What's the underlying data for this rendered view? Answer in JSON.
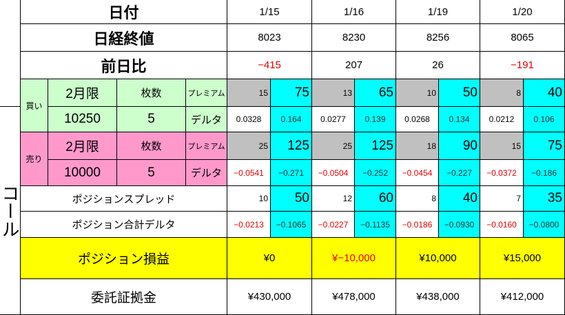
{
  "side_label": "コール",
  "headers": {
    "date": "日付",
    "close": "日経終値",
    "change": "前日比",
    "spread": "ポジションスプレッド",
    "total_delta": "ポジション合計デルタ",
    "pnl": "ポジション損益",
    "margin": "委託証拠金"
  },
  "buy": {
    "label": "買い",
    "month": "2月限",
    "qty_label": "枚数",
    "premium_label": "プレミアム",
    "strike": "10250",
    "qty": "5",
    "delta_label": "デルタ"
  },
  "sell": {
    "label": "売り",
    "month": "2月限",
    "qty_label": "枚数",
    "premium_label": "プレミアム",
    "strike": "10000",
    "qty": "5",
    "delta_label": "デルタ"
  },
  "columns": [
    {
      "date": "1/15",
      "close": "8023",
      "change": "−415",
      "buy_prem": "15",
      "buy_prem_total": "75",
      "buy_delta": "0.0328",
      "buy_delta_total": "0.164",
      "sell_prem": "25",
      "sell_prem_total": "125",
      "sell_delta": "−0.0541",
      "sell_delta_total": "−0.271",
      "spread": "10",
      "spread_total": "50",
      "tdelta": "−0.0213",
      "tdelta_total": "−0.1065",
      "pnl": "¥0",
      "margin": "¥430,000"
    },
    {
      "date": "1/16",
      "close": "8230",
      "change": "207",
      "buy_prem": "13",
      "buy_prem_total": "65",
      "buy_delta": "0.0277",
      "buy_delta_total": "0.139",
      "sell_prem": "25",
      "sell_prem_total": "125",
      "sell_delta": "−0.0504",
      "sell_delta_total": "−0.252",
      "spread": "12",
      "spread_total": "60",
      "tdelta": "−0.0227",
      "tdelta_total": "−0.1135",
      "pnl": "¥−10,000",
      "margin": "¥478,000"
    },
    {
      "date": "1/19",
      "close": "8256",
      "change": "26",
      "buy_prem": "10",
      "buy_prem_total": "50",
      "buy_delta": "0.0268",
      "buy_delta_total": "0.134",
      "sell_prem": "18",
      "sell_prem_total": "90",
      "sell_delta": "−0.0454",
      "sell_delta_total": "−0.227",
      "spread": "8",
      "spread_total": "40",
      "tdelta": "−0.0186",
      "tdelta_total": "−0.0930",
      "pnl": "¥10,000",
      "margin": "¥438,000"
    },
    {
      "date": "1/20",
      "close": "8065",
      "change": "−191",
      "buy_prem": "8",
      "buy_prem_total": "40",
      "buy_delta": "0.0212",
      "buy_delta_total": "0.106",
      "sell_prem": "15",
      "sell_prem_total": "75",
      "sell_delta": "−0.0372",
      "sell_delta_total": "−0.186",
      "spread": "7",
      "spread_total": "35",
      "tdelta": "−0.0160",
      "tdelta_total": "−0.0800",
      "pnl": "¥15,000",
      "margin": "¥412,000"
    }
  ],
  "negative_change_cols": [
    0,
    3
  ],
  "negative_pnl_cols": [
    1
  ],
  "colors": {
    "buy": "#ccffcc",
    "sell": "#ff99cc",
    "premium": "#c0c0c0",
    "total": "#00ffff",
    "pnl": "#ffff00",
    "negative": "#e00000"
  }
}
